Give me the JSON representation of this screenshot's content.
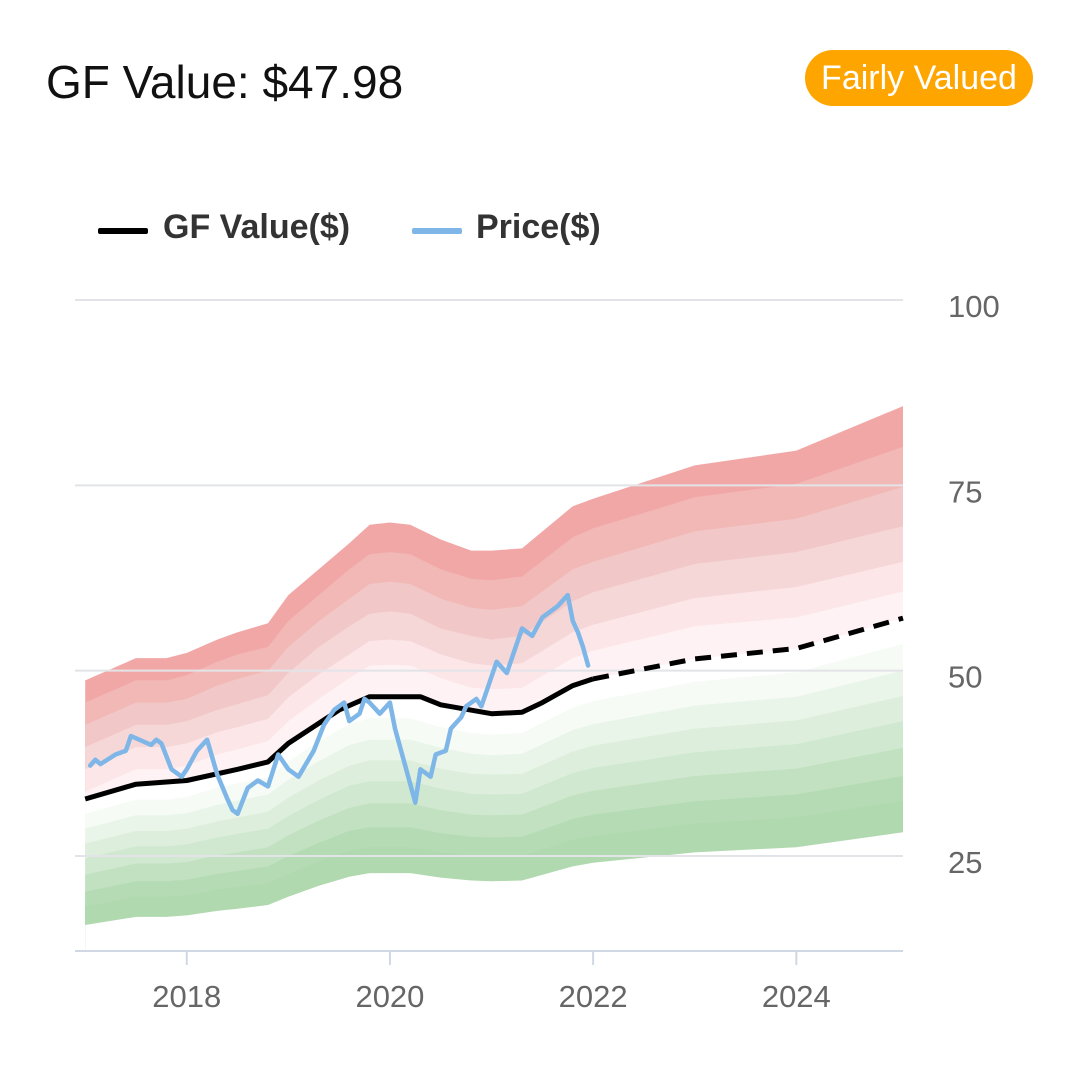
{
  "header": {
    "title": "GF Value: $47.98",
    "badge": "Fairly Valued",
    "badge_color": "#FFA500"
  },
  "chart_data": {
    "type": "line",
    "legend_placement": "top-left",
    "legend": [
      {
        "label": "GF Value($)",
        "color": "#000000"
      },
      {
        "label": "Price($)",
        "color": "#7EB6E8"
      }
    ],
    "grid": true,
    "xlim": [
      2016.9,
      2025.05
    ],
    "ylim": [
      12,
      100
    ],
    "y_ticks": [
      100,
      75,
      50,
      25
    ],
    "x_ticks": [
      2018,
      2020,
      2022,
      2024
    ],
    "gf_value": {
      "name": "GF Value($)",
      "x": [
        2017.0,
        2017.5,
        2018.0,
        2018.5,
        2018.8,
        2019.0,
        2019.5,
        2019.8,
        2020.0,
        2020.3,
        2020.5,
        2021.0,
        2021.3,
        2021.5,
        2021.8,
        2022.0,
        2023.0,
        2024.0,
        2025.05
      ],
      "y": [
        33.5,
        35.5,
        36.0,
        37.5,
        38.5,
        41.0,
        45.5,
        47.3,
        47.3,
        47.3,
        46.2,
        45.0,
        45.2,
        46.5,
        48.8,
        49.7,
        52.4,
        53.8,
        57.9
      ],
      "projected_from": 2022.0
    },
    "price": {
      "name": "Price($)",
      "x": [
        2017.05,
        2017.1,
        2017.15,
        2017.3,
        2017.4,
        2017.45,
        2017.65,
        2017.7,
        2017.75,
        2017.85,
        2017.95,
        2018.0,
        2018.1,
        2018.2,
        2018.3,
        2018.4,
        2018.45,
        2018.5,
        2018.6,
        2018.7,
        2018.8,
        2018.9,
        2019.0,
        2019.1,
        2019.25,
        2019.35,
        2019.45,
        2019.55,
        2019.6,
        2019.7,
        2019.75,
        2019.8,
        2019.9,
        2020.0,
        2020.05,
        2020.15,
        2020.25,
        2020.3,
        2020.4,
        2020.45,
        2020.55,
        2020.6,
        2020.7,
        2020.75,
        2020.85,
        2020.9,
        2021.0,
        2021.05,
        2021.15,
        2021.3,
        2021.4,
        2021.5,
        2021.65,
        2021.75,
        2021.8,
        2021.85,
        2021.9,
        2021.95
      ],
      "y": [
        38.0,
        38.8,
        38.2,
        39.5,
        40.0,
        42.0,
        40.8,
        41.5,
        41.0,
        37.5,
        36.5,
        37.5,
        40.0,
        41.5,
        36.8,
        33.5,
        32.0,
        31.5,
        35.0,
        36.0,
        35.2,
        39.5,
        37.5,
        36.5,
        40.0,
        43.5,
        45.5,
        46.5,
        44.0,
        45.0,
        47.0,
        46.5,
        45.0,
        46.5,
        43.0,
        38.0,
        33.0,
        37.5,
        36.5,
        39.5,
        40.0,
        43.0,
        44.5,
        46.0,
        47.0,
        46.0,
        50.0,
        52.0,
        50.5,
        56.5,
        55.5,
        58.0,
        59.5,
        61.0,
        57.5,
        56.0,
        54.0,
        51.5
      ]
    },
    "bands": {
      "x": [
        2017.0,
        2017.5,
        2017.8,
        2018.0,
        2018.3,
        2018.5,
        2018.8,
        2019.0,
        2019.3,
        2019.6,
        2019.8,
        2020.0,
        2020.2,
        2020.5,
        2020.8,
        2021.0,
        2021.3,
        2021.8,
        2022.0,
        2023.0,
        2024.0,
        2025.05
      ],
      "levels": [
        {
          "color": "#F2A7A7",
          "y": [
            49.5,
            52.5,
            52.5,
            53.2,
            55.0,
            56.0,
            57.2,
            61.0,
            64.5,
            68.0,
            70.5,
            70.8,
            70.5,
            68.5,
            67.0,
            67.0,
            67.3,
            73.0,
            74.0,
            78.5,
            80.5,
            86.5
          ]
        },
        {
          "color": "#F1B8B6",
          "y": [
            46.5,
            49.5,
            49.5,
            50.2,
            52.0,
            53.0,
            54.0,
            57.5,
            61.0,
            64.5,
            66.5,
            66.8,
            66.5,
            64.5,
            63.2,
            63.0,
            63.5,
            68.8,
            70.0,
            74.2,
            76.0,
            81.0
          ]
        },
        {
          "color": "#F1C8C7",
          "y": [
            43.5,
            46.5,
            46.5,
            47.0,
            48.8,
            49.7,
            50.8,
            54.0,
            57.5,
            60.5,
            62.5,
            62.8,
            62.5,
            60.5,
            59.3,
            59.0,
            59.5,
            64.5,
            65.5,
            69.6,
            71.3,
            75.6
          ]
        },
        {
          "color": "#F6D7D8",
          "y": [
            40.5,
            43.5,
            43.5,
            44.0,
            45.5,
            46.3,
            47.5,
            50.5,
            54.0,
            56.8,
            58.5,
            58.8,
            58.5,
            56.5,
            55.5,
            55.0,
            55.5,
            60.2,
            61.4,
            65.2,
            66.8,
            70.3
          ]
        },
        {
          "color": "#FCE6E8",
          "y": [
            37.5,
            40.5,
            40.5,
            41.0,
            42.5,
            43.2,
            44.3,
            47.2,
            50.3,
            53.0,
            54.8,
            55.0,
            54.8,
            53.0,
            51.8,
            51.5,
            51.8,
            56.0,
            57.0,
            60.6,
            62.1,
            65.5
          ]
        },
        {
          "color": "#FEF2F4",
          "y": [
            34.5,
            37.5,
            37.5,
            38.0,
            39.5,
            40.2,
            41.3,
            44.0,
            47.0,
            49.8,
            51.5,
            51.6,
            51.5,
            49.8,
            48.5,
            48.3,
            48.5,
            52.5,
            53.5,
            56.8,
            58.0,
            61.5
          ]
        },
        {
          "color": "#FFFFFF",
          "y": [
            33.5,
            35.5,
            35.5,
            36.0,
            37.2,
            37.8,
            38.8,
            41.0,
            44.0,
            46.5,
            47.3,
            47.3,
            47.3,
            46.0,
            45.2,
            45.0,
            45.2,
            48.8,
            49.7,
            52.4,
            53.8,
            57.9
          ]
        },
        {
          "color": "#F6FBF5",
          "y": [
            31.5,
            33.4,
            33.4,
            33.8,
            35.0,
            35.6,
            36.4,
            38.6,
            41.3,
            43.6,
            44.4,
            44.4,
            44.4,
            43.2,
            42.4,
            42.2,
            42.4,
            45.8,
            46.7,
            49.3,
            50.6,
            54.4
          ]
        },
        {
          "color": "#EAF5E9",
          "y": [
            29.5,
            31.3,
            31.3,
            31.6,
            32.7,
            33.3,
            34.1,
            36.1,
            38.6,
            40.8,
            41.5,
            41.5,
            41.5,
            40.4,
            39.6,
            39.4,
            39.6,
            42.8,
            43.6,
            46.1,
            47.3,
            50.8
          ]
        },
        {
          "color": "#DDEFDC",
          "y": [
            27.5,
            29.2,
            29.2,
            29.5,
            30.5,
            31.0,
            31.8,
            33.7,
            36.0,
            38.0,
            38.7,
            38.7,
            38.7,
            37.6,
            36.9,
            36.8,
            36.9,
            39.9,
            40.7,
            43.0,
            44.1,
            47.4
          ]
        },
        {
          "color": "#D0E8CF",
          "y": [
            25.5,
            27.1,
            27.1,
            27.4,
            28.3,
            28.8,
            29.5,
            31.2,
            33.4,
            35.3,
            35.9,
            35.9,
            35.9,
            34.9,
            34.2,
            34.1,
            34.2,
            37.0,
            37.7,
            39.8,
            40.9,
            44.0
          ]
        },
        {
          "color": "#C2E1C1",
          "y": [
            23.3,
            24.8,
            24.8,
            25.0,
            25.9,
            26.3,
            27.0,
            28.6,
            30.6,
            32.3,
            32.9,
            32.9,
            32.9,
            32.0,
            31.4,
            31.3,
            31.4,
            34.0,
            34.6,
            36.6,
            37.6,
            40.4
          ]
        },
        {
          "color": "#B5DBB4",
          "y": [
            21.0,
            22.4,
            22.4,
            22.6,
            23.4,
            23.8,
            24.4,
            25.8,
            27.6,
            29.2,
            29.7,
            29.7,
            29.7,
            28.9,
            28.4,
            28.3,
            28.4,
            30.8,
            31.4,
            33.2,
            34.1,
            36.6
          ]
        },
        {
          "color": "#B0D9AF",
          "y": [
            19.0,
            20.3,
            20.3,
            20.5,
            21.3,
            21.6,
            22.1,
            23.4,
            25.1,
            26.5,
            27.0,
            27.0,
            27.0,
            26.3,
            25.8,
            25.7,
            25.8,
            28.0,
            28.5,
            30.2,
            31.0,
            33.3
          ]
        },
        {
          "color": "#FFFFFF",
          "y": [
            16.5,
            17.6,
            17.6,
            17.8,
            18.4,
            18.7,
            19.2,
            20.3,
            21.8,
            23.0,
            23.5,
            23.5,
            23.5,
            22.9,
            22.5,
            22.4,
            22.5,
            24.4,
            24.9,
            26.3,
            27.0,
            29.0
          ]
        }
      ]
    }
  }
}
